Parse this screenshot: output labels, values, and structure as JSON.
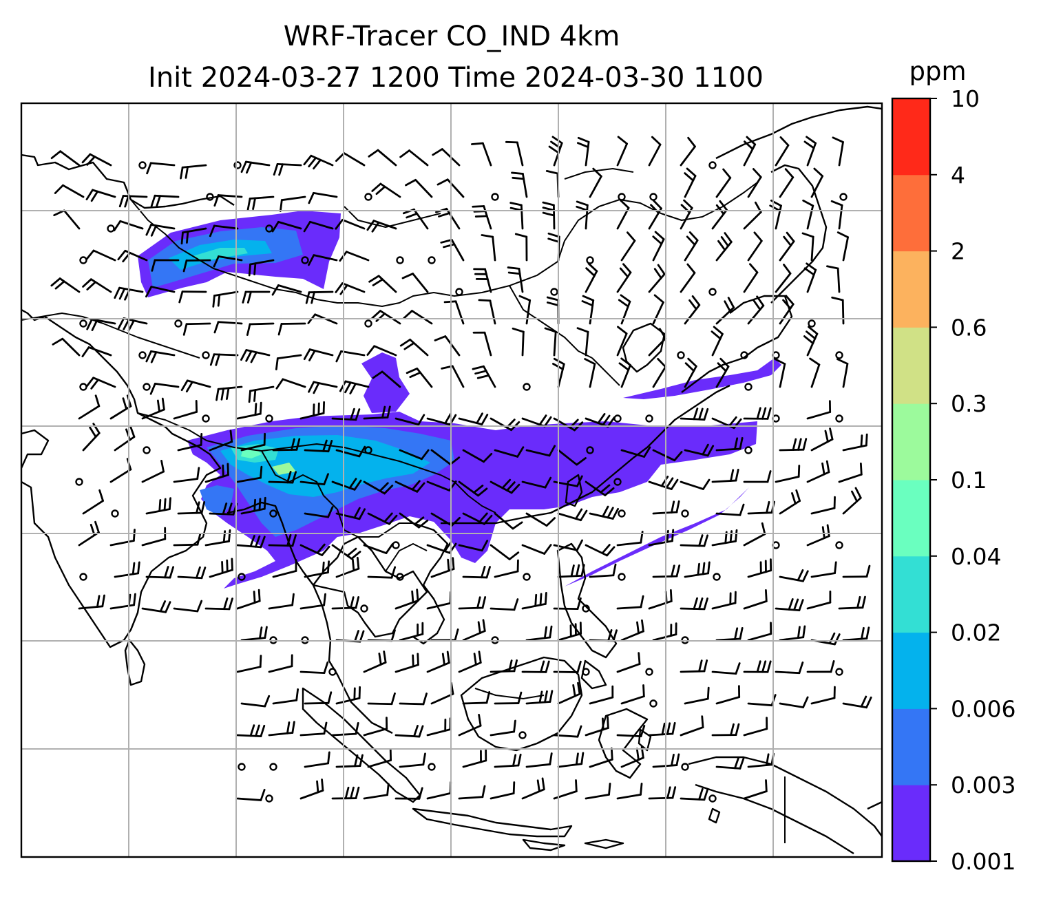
{
  "figure": {
    "title_line1": "WRF-Tracer CO_IND 4km",
    "title_line2": "Init 2024-03-27 1200 Time 2024-03-30 1100"
  },
  "colorbar": {
    "unit": "ppm",
    "levels": [
      "0.001",
      "0.003",
      "0.006",
      "0.02",
      "0.04",
      "0.1",
      "0.3",
      "0.6",
      "2",
      "4",
      "10"
    ],
    "colors": [
      "#6a2cfb",
      "#3476f5",
      "#04b2ed",
      "#33dfd4",
      "#6affbf",
      "#9cfa9c",
      "#d0e186",
      "#fcb25e",
      "#fe6e3a",
      "#ff2919"
    ]
  },
  "map": {
    "gridlines": true,
    "features": [
      "coastlines",
      "country-borders",
      "tracer-plumes",
      "wind-barbs"
    ]
  }
}
